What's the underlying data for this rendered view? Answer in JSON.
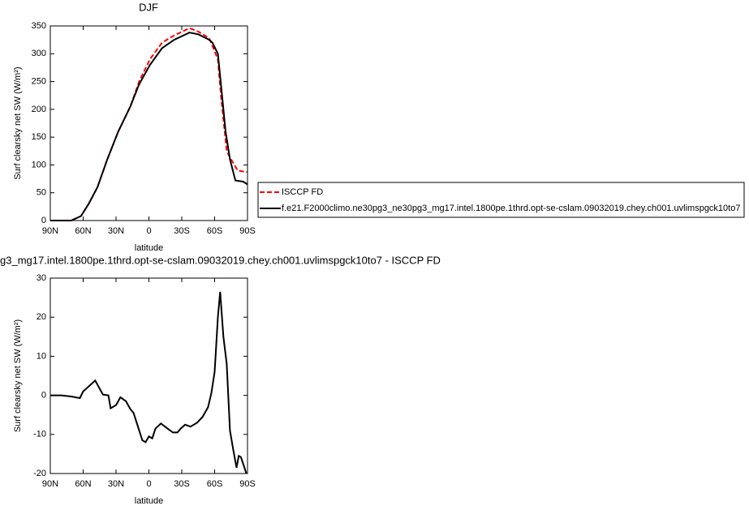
{
  "chart_data": [
    {
      "type": "line",
      "title": "DJF",
      "xlabel": "latitude",
      "ylabel": "Surf clearsky net SW (W/m²)",
      "xlim": [
        90,
        -90
      ],
      "ylim": [
        0,
        350
      ],
      "xticks": [
        {
          "value": 90,
          "label": "90N"
        },
        {
          "value": 60,
          "label": "60N"
        },
        {
          "value": 30,
          "label": "30N"
        },
        0,
        {
          "value": -30,
          "label": "30S"
        },
        {
          "value": -60,
          "label": "60S"
        },
        {
          "value": -90,
          "label": "90S"
        }
      ],
      "yticks": [
        0,
        50,
        100,
        150,
        200,
        250,
        300,
        350
      ],
      "legend": "right",
      "series": [
        {
          "name": "ISCCP FD",
          "color": "#ff0000",
          "dashed": true,
          "x": [
            90,
            80,
            71,
            62,
            55,
            47,
            38,
            28,
            17,
            9,
            -1,
            -12,
            -23,
            -37,
            -45,
            -55,
            -63,
            -66,
            -71,
            -75,
            -81,
            -90
          ],
          "values": [
            0,
            0,
            0,
            8,
            30,
            60,
            110,
            160,
            205,
            250,
            290,
            320,
            333,
            346,
            340,
            328,
            290,
            220,
            125,
            110,
            90,
            87
          ]
        },
        {
          "name": "f.e21.F2000climo.ne30pg3_ne30pg3_mg17.intel.1800pe.1thrd.opt-se-cslam.09032019.chey.ch001.uvlimspgck10to7",
          "color": "#000000",
          "dashed": false,
          "x": [
            90,
            80,
            71,
            62,
            55,
            47,
            38,
            28,
            17,
            9,
            -1,
            -12,
            -23,
            -37,
            -45,
            -55,
            -58,
            -63,
            -66,
            -70,
            -74,
            -79,
            -86,
            -90
          ],
          "values": [
            0,
            0,
            0,
            8,
            30,
            60,
            110,
            160,
            205,
            245,
            280,
            310,
            325,
            338,
            335,
            325,
            320,
            300,
            240,
            160,
            110,
            72,
            70,
            65
          ]
        }
      ]
    },
    {
      "type": "line",
      "title": "g3_mg17.intel.1800pe.1thrd.opt-se-cslam.09032019.chey.ch001.uvlimspgck10to7 - ISCCP FD",
      "xlabel": "latitude",
      "ylabel": "Surf clearsky net SW (W/m²)",
      "xlim": [
        90,
        -90
      ],
      "ylim": [
        -20,
        30
      ],
      "xticks": [
        {
          "value": 90,
          "label": "90N"
        },
        {
          "value": 60,
          "label": "60N"
        },
        {
          "value": 30,
          "label": "30N"
        },
        0,
        {
          "value": -30,
          "label": "30S"
        },
        {
          "value": -60,
          "label": "60S"
        },
        {
          "value": -90,
          "label": "90S"
        }
      ],
      "yticks": [
        -20,
        -10,
        0,
        10,
        20,
        30
      ],
      "series": [
        {
          "color": "#000000",
          "dashed": false,
          "x": [
            90,
            80,
            71,
            63,
            60,
            49,
            42,
            37,
            35,
            30,
            26,
            21,
            17,
            14,
            10,
            6,
            3,
            0,
            -3,
            -6,
            -11,
            -17,
            -22,
            -26,
            -29,
            -33,
            -38,
            -44,
            -49,
            -54,
            -57,
            -60,
            -63,
            -65,
            -68,
            -71,
            -74,
            -77,
            -80,
            -82,
            -84,
            -89
          ],
          "values": [
            0,
            0,
            -0.3,
            -0.7,
            1,
            3.8,
            0.2,
            0,
            -3.3,
            -2.5,
            -0.5,
            -1.5,
            -3.5,
            -4.5,
            -8,
            -11.5,
            -12,
            -10.5,
            -11,
            -8.5,
            -7.2,
            -8.5,
            -9.5,
            -9.5,
            -8.5,
            -7.5,
            -8,
            -7,
            -5.5,
            -3,
            0.5,
            6,
            20,
            26.5,
            15,
            8,
            -9,
            -14,
            -18.5,
            -15.5,
            -15.8,
            -20
          ]
        }
      ]
    }
  ]
}
